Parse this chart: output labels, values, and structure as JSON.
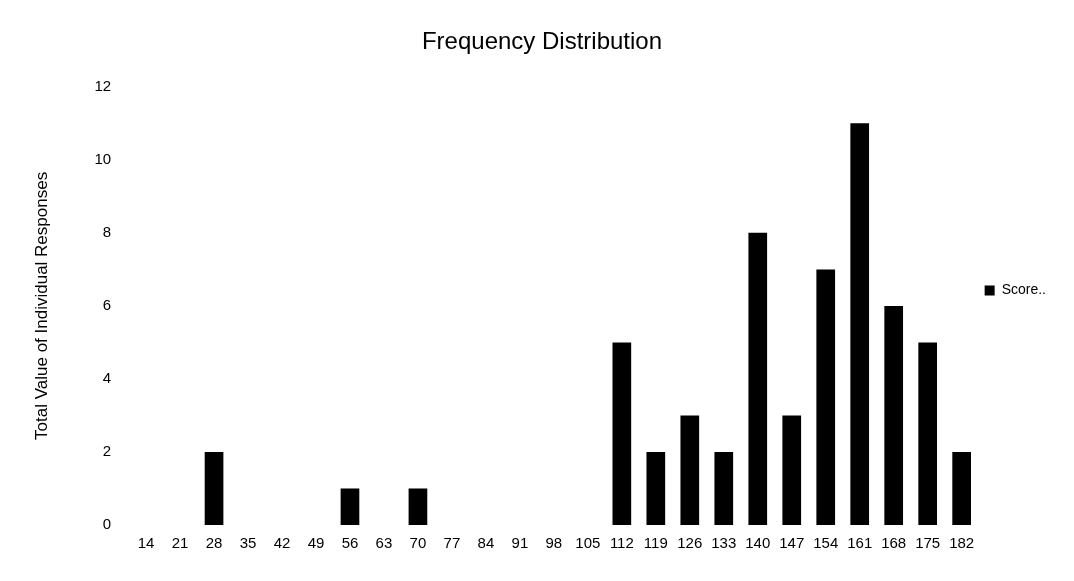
{
  "chart_data": {
    "type": "bar",
    "title": "Frequency Distribution",
    "ylabel": "Total Value of Individual Responses",
    "categories": [
      "14",
      "21",
      "28",
      "35",
      "42",
      "49",
      "56",
      "63",
      "70",
      "77",
      "84",
      "91",
      "98",
      "105",
      "112",
      "119",
      "126",
      "133",
      "140",
      "147",
      "154",
      "161",
      "168",
      "175",
      "182"
    ],
    "series": [
      {
        "name": "Score..",
        "color": "#000000",
        "values": [
          0,
          0,
          2,
          0,
          0,
          0,
          1,
          0,
          1,
          0,
          0,
          0,
          0,
          0,
          5,
          2,
          3,
          2,
          8,
          3,
          7,
          11,
          6,
          5,
          2
        ]
      }
    ],
    "ylim": [
      0,
      12
    ],
    "yticks": [
      0,
      2,
      4,
      6,
      8,
      10,
      12
    ],
    "grid": false,
    "legend": "right"
  }
}
